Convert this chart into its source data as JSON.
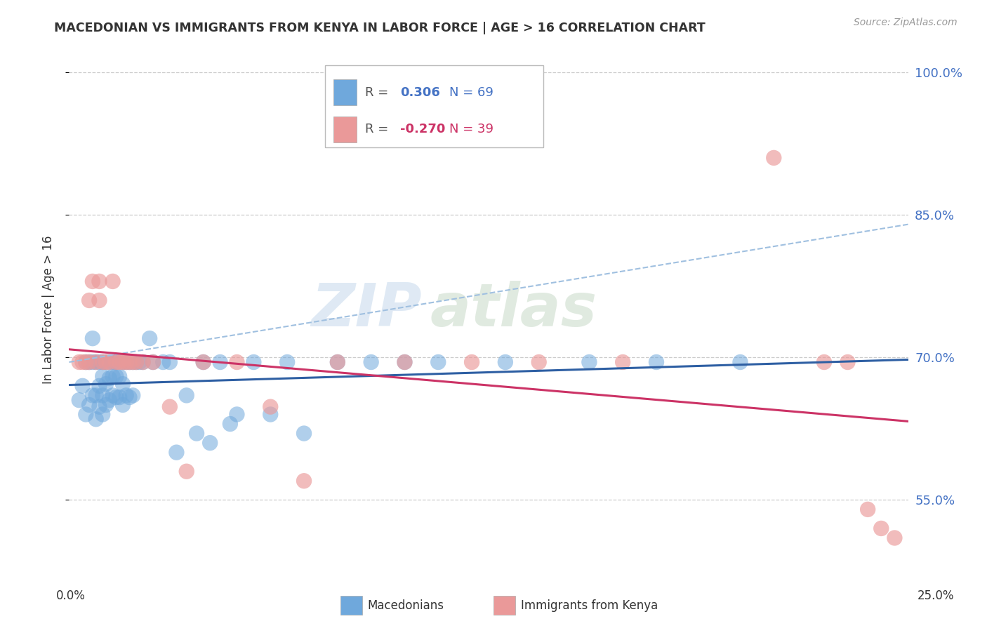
{
  "title": "MACEDONIAN VS IMMIGRANTS FROM KENYA IN LABOR FORCE | AGE > 16 CORRELATION CHART",
  "source": "Source: ZipAtlas.com",
  "ylabel": "In Labor Force | Age > 16",
  "xlim": [
    0.0,
    0.25
  ],
  "ylim": [
    0.47,
    1.03
  ],
  "r_macedonian": "0.306",
  "n_macedonian": "69",
  "r_kenya": "-0.270",
  "n_kenya": "39",
  "blue_scatter_color": "#6fa8dc",
  "pink_scatter_color": "#ea9999",
  "blue_line_color": "#2e5fa3",
  "pink_line_color": "#cc3366",
  "blue_dash_color": "#a0c0e0",
  "grid_color": "#cccccc",
  "background_color": "#ffffff",
  "axis_label_color": "#4472c4",
  "title_color": "#333333",
  "ytick_vals": [
    0.55,
    0.7,
    0.85,
    1.0
  ],
  "ytick_labels": [
    "55.0%",
    "70.0%",
    "85.0%",
    "100.0%"
  ],
  "mac_x": [
    0.003,
    0.004,
    0.005,
    0.005,
    0.006,
    0.006,
    0.007,
    0.007,
    0.007,
    0.008,
    0.008,
    0.008,
    0.009,
    0.009,
    0.009,
    0.01,
    0.01,
    0.01,
    0.01,
    0.011,
    0.011,
    0.011,
    0.012,
    0.012,
    0.012,
    0.013,
    0.013,
    0.013,
    0.014,
    0.014,
    0.014,
    0.015,
    0.015,
    0.016,
    0.016,
    0.016,
    0.017,
    0.017,
    0.018,
    0.018,
    0.019,
    0.019,
    0.02,
    0.021,
    0.022,
    0.024,
    0.025,
    0.028,
    0.03,
    0.032,
    0.035,
    0.038,
    0.04,
    0.042,
    0.045,
    0.048,
    0.05,
    0.055,
    0.06,
    0.065,
    0.07,
    0.08,
    0.09,
    0.1,
    0.11,
    0.13,
    0.155,
    0.175,
    0.2
  ],
  "mac_y": [
    0.655,
    0.67,
    0.64,
    0.695,
    0.65,
    0.695,
    0.66,
    0.695,
    0.72,
    0.635,
    0.66,
    0.695,
    0.648,
    0.67,
    0.695,
    0.64,
    0.66,
    0.68,
    0.695,
    0.65,
    0.672,
    0.695,
    0.655,
    0.678,
    0.695,
    0.66,
    0.68,
    0.695,
    0.658,
    0.68,
    0.695,
    0.658,
    0.68,
    0.65,
    0.672,
    0.695,
    0.66,
    0.695,
    0.658,
    0.695,
    0.66,
    0.695,
    0.695,
    0.695,
    0.695,
    0.72,
    0.695,
    0.695,
    0.695,
    0.6,
    0.66,
    0.62,
    0.695,
    0.61,
    0.695,
    0.63,
    0.64,
    0.695,
    0.64,
    0.695,
    0.62,
    0.695,
    0.695,
    0.695,
    0.695,
    0.695,
    0.695,
    0.695,
    0.695
  ],
  "ken_x": [
    0.003,
    0.004,
    0.005,
    0.006,
    0.007,
    0.008,
    0.009,
    0.01,
    0.011,
    0.012,
    0.013,
    0.014,
    0.015,
    0.016,
    0.017,
    0.018,
    0.019,
    0.02,
    0.022,
    0.025,
    0.03,
    0.035,
    0.04,
    0.05,
    0.06,
    0.07,
    0.08,
    0.1,
    0.12,
    0.14,
    0.165,
    0.21,
    0.225,
    0.232,
    0.238,
    0.242,
    0.246,
    0.006,
    0.009
  ],
  "ken_y": [
    0.695,
    0.695,
    0.695,
    0.695,
    0.78,
    0.695,
    0.78,
    0.695,
    0.695,
    0.695,
    0.78,
    0.695,
    0.695,
    0.695,
    0.695,
    0.695,
    0.695,
    0.695,
    0.695,
    0.695,
    0.648,
    0.58,
    0.695,
    0.695,
    0.648,
    0.57,
    0.695,
    0.695,
    0.695,
    0.695,
    0.695,
    0.91,
    0.695,
    0.695,
    0.54,
    0.52,
    0.51,
    0.76,
    0.76
  ]
}
